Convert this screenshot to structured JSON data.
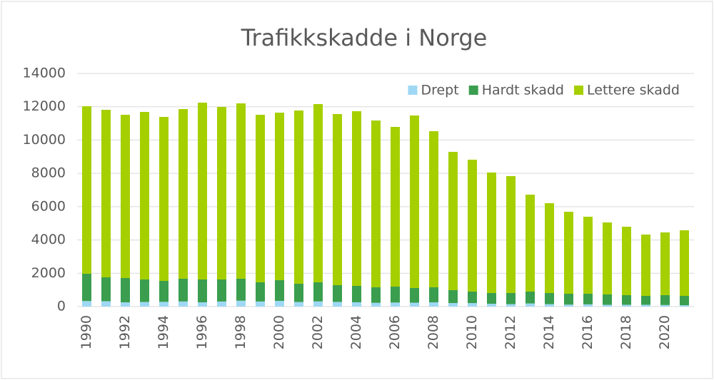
{
  "chart_data": {
    "type": "stacked_bar",
    "title": "Trafikkskadde i Norge",
    "categories": [
      "1990",
      null,
      "1992",
      null,
      "1994",
      null,
      "1996",
      null,
      "1998",
      null,
      "2000",
      null,
      "2002",
      null,
      "2004",
      null,
      "2006",
      null,
      "2008",
      null,
      "2010",
      null,
      "2012",
      null,
      "2014",
      null,
      "2016",
      null,
      "2018",
      null,
      "2020",
      null
    ],
    "series": [
      {
        "name": "Drept",
        "color": "#9fd8f4",
        "values": [
          332,
          322,
          255,
          277,
          283,
          305,
          255,
          303,
          352,
          304,
          341,
          275,
          310,
          280,
          259,
          224,
          242,
          233,
          255,
          212,
          208,
          168,
          145,
          187,
          147,
          117,
          135,
          106,
          108,
          108,
          95,
          80
        ]
      },
      {
        "name": "Hardt skadd",
        "color": "#3a9e4e",
        "values": [
          1638,
          1433,
          1458,
          1350,
          1258,
          1365,
          1372,
          1324,
          1318,
          1152,
          1243,
          1095,
          1146,
          1004,
          983,
          932,
          957,
          880,
          901,
          773,
          691,
          645,
          668,
          712,
          666,
          653,
          635,
          622,
          577,
          534,
          590,
          562
        ]
      },
      {
        "name": "Lettere skadd",
        "color": "#a6cf00",
        "values": [
          10060,
          10061,
          9804,
          10061,
          9848,
          10189,
          10618,
          10361,
          10532,
          10061,
          10061,
          10404,
          10703,
          10276,
          10489,
          10018,
          9590,
          10361,
          9376,
          8305,
          7921,
          7236,
          7022,
          5823,
          5395,
          4924,
          4624,
          4324,
          4110,
          3682,
          3768,
          3939
        ]
      }
    ],
    "ylim": [
      0,
      14000
    ],
    "yticks": [
      0,
      2000,
      4000,
      6000,
      8000,
      10000,
      12000,
      14000
    ],
    "grid": true,
    "legend": "top-right"
  }
}
